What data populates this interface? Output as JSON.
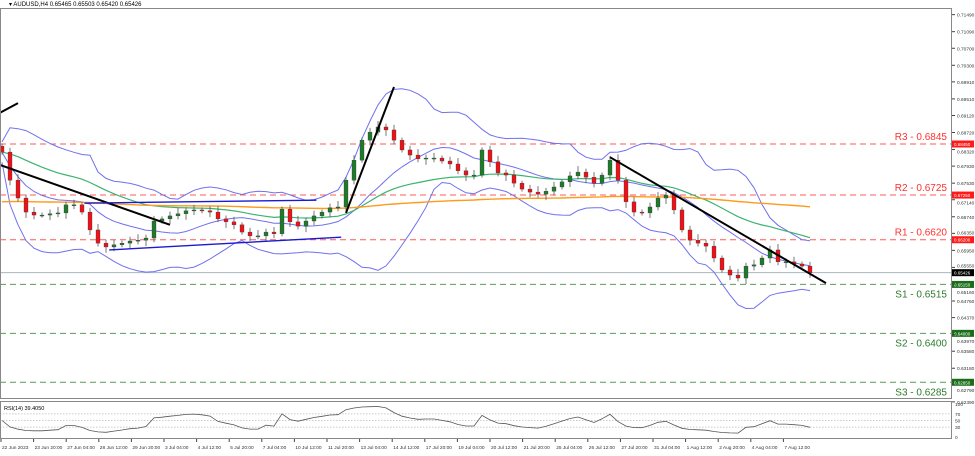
{
  "header": {
    "symbol_label": "AUDUSD,H4",
    "ohlc": "0.65465 0.65503 0.65420 0.65426"
  },
  "colors": {
    "bull": "#1f7a2a",
    "bear": "#e8141a",
    "resistance": "#ff5a5a",
    "support": "#5a9a5a",
    "bollinger": "#7070f0",
    "ma_fast": "#3cb371",
    "ma_slow": "#ff9a1a",
    "trendline": "#000000",
    "channel": "#1a1ad0",
    "current_tag": "#000000"
  },
  "chart_data": {
    "type": "candlestick",
    "title": "",
    "timeframe": "H4",
    "first_open": 0.684,
    "closes": [
      0.6826,
      0.676,
      0.6718,
      0.6685,
      0.6678,
      0.6678,
      0.6681,
      0.6683,
      0.6702,
      0.6702,
      0.6685,
      0.6643,
      0.6612,
      0.6603,
      0.6608,
      0.6612,
      0.6617,
      0.6619,
      0.6624,
      0.6664,
      0.6669,
      0.6676,
      0.6681,
      0.6688,
      0.669,
      0.6688,
      0.6685,
      0.6669,
      0.6662,
      0.6655,
      0.6638,
      0.6629,
      0.6629,
      0.6638,
      0.6634,
      0.6692,
      0.6662,
      0.6652,
      0.6664,
      0.6676,
      0.6685,
      0.6695,
      0.6697,
      0.676,
      0.6807,
      0.6854,
      0.6873,
      0.6885,
      0.6878,
      0.6854,
      0.6831,
      0.6819,
      0.681,
      0.6812,
      0.6812,
      0.6805,
      0.6798,
      0.6782,
      0.6772,
      0.6772,
      0.6831,
      0.6803,
      0.6777,
      0.6772,
      0.6753,
      0.6739,
      0.6732,
      0.6727,
      0.6734,
      0.6744,
      0.6756,
      0.677,
      0.6779,
      0.6767,
      0.6753,
      0.6772,
      0.6807,
      0.676,
      0.6709,
      0.6685,
      0.6683,
      0.6697,
      0.6718,
      0.6725,
      0.669,
      0.6643,
      0.6619,
      0.6612,
      0.6605,
      0.6577,
      0.6549,
      0.6537,
      0.653,
      0.6558,
      0.6561,
      0.6577,
      0.6596,
      0.6568,
      0.6568,
      0.6563,
      0.6558,
      0.65426
    ],
    "current_price": "0.65426",
    "y_axis_ticks": [
      "0.71490",
      "0.71090",
      "0.70700",
      "0.70300",
      "0.69910",
      "0.69510",
      "0.69120",
      "0.68720",
      "0.68320",
      "0.67930",
      "0.67530",
      "0.67140",
      "0.66740",
      "0.66350",
      "0.65950",
      "0.65550",
      "0.65160",
      "0.64760",
      "0.64370",
      "0.63970",
      "0.63580",
      "0.63180",
      "0.62790",
      "0.62390"
    ],
    "x_axis_ticks": [
      "22 Jun 2023",
      "23 Jun 20:00",
      "27 Jun 04:00",
      "28 Jun 12:00",
      "29 Jun 20:00",
      "3 Jul 04:00",
      "4 Jul 12:00",
      "5 Jul 20:00",
      "7 Jul 04:00",
      "10 Jul 12:00",
      "11 Jul 20:00",
      "13 Jul 04:00",
      "14 Jul 12:00",
      "17 Jul 20:00",
      "19 Jul 04:00",
      "20 Jul 12:00",
      "21 Jul 20:00",
      "25 Jul 04:00",
      "26 Jul 12:00",
      "27 Jul 20:00",
      "31 Jul 04:00",
      "1 Aug 12:00",
      "2 Aug 20:00",
      "4 Aug 04:00",
      "7 Aug 12:00"
    ],
    "levels": [
      {
        "label": "R3 - 0.6845",
        "price": 0.6845,
        "tag": "0.68450",
        "kind": "resistance"
      },
      {
        "label": "R2 - 0.6725",
        "price": 0.6725,
        "tag": "0.67250",
        "kind": "resistance"
      },
      {
        "label": "R1 - 0.6620",
        "price": 0.662,
        "tag": "0.66200",
        "kind": "resistance"
      },
      {
        "label": "S1 - 0.6515",
        "price": 0.6515,
        "tag": "0.65150",
        "kind": "support"
      },
      {
        "label": "S2 - 0.6400",
        "price": 0.64,
        "tag": "0.64000",
        "kind": "support"
      },
      {
        "label": "S3 - 0.6285",
        "price": 0.6285,
        "tag": "0.62850",
        "kind": "support"
      }
    ],
    "trendlines": [
      {
        "kind": "trendline",
        "from": [
          -0.3,
          0.6918
        ],
        "to": [
          2,
          0.6941
        ]
      },
      {
        "kind": "trendline",
        "from": [
          -0.3,
          0.6796
        ],
        "to": [
          21,
          0.6655
        ]
      },
      {
        "kind": "channel",
        "from": [
          10.3,
          0.6706
        ],
        "to": [
          39.3,
          0.6713
        ]
      },
      {
        "kind": "channel",
        "from": [
          13.4,
          0.6596
        ],
        "to": [
          42.4,
          0.6626
        ]
      },
      {
        "kind": "trendline",
        "from": [
          43,
          0.6683
        ],
        "to": [
          49,
          0.6979
        ]
      },
      {
        "kind": "trendline",
        "from": [
          76,
          0.6814
        ],
        "to": [
          103,
          0.6518
        ]
      }
    ],
    "indicators": [
      "Bollinger Bands",
      "Moving Average (fast)",
      "Moving Average (slow)"
    ],
    "rsi": {
      "label": "RSI(14) 39.4050",
      "ticks": [
        "100",
        "70",
        "50",
        "30",
        "0"
      ],
      "levels": [
        70,
        50,
        30
      ],
      "range": [
        0,
        100
      ]
    }
  }
}
